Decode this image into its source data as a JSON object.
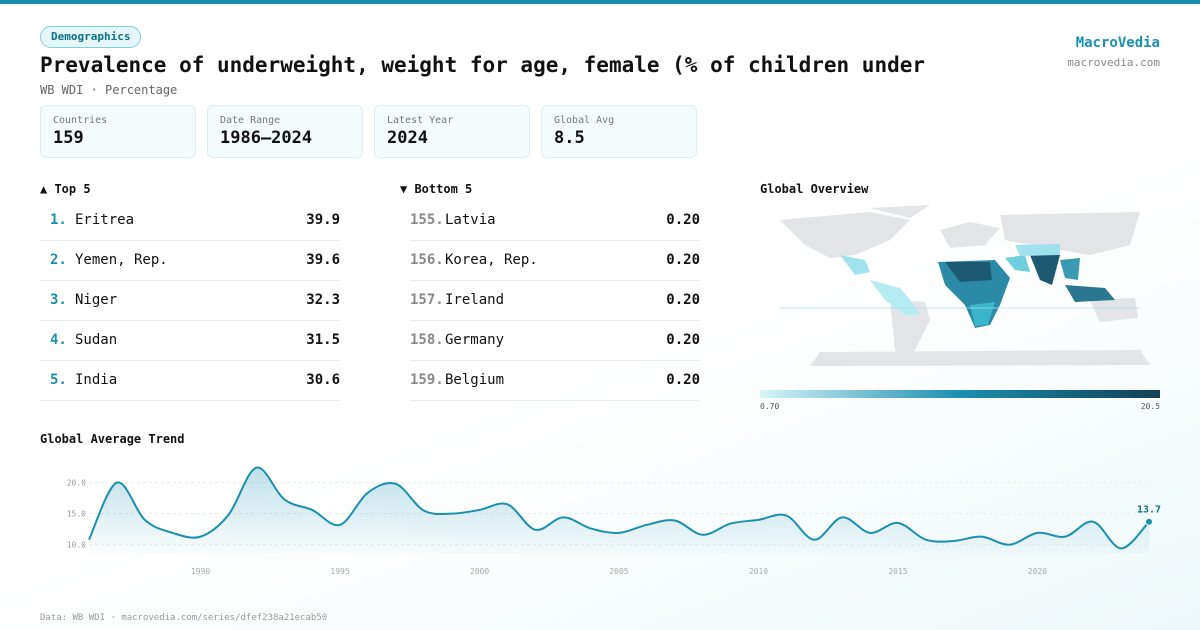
{
  "header": {
    "badge": "Demographics",
    "title": "Prevalence of underweight, weight for age, female (% of children under",
    "subtitle": "WB WDI · Percentage",
    "brand": "MacroVedia",
    "site": "macrovedia.com"
  },
  "stats": [
    {
      "label": "Countries",
      "value": "159"
    },
    {
      "label": "Date Range",
      "value": "1986–2024"
    },
    {
      "label": "Latest Year",
      "value": "2024"
    },
    {
      "label": "Global Avg",
      "value": "8.5"
    }
  ],
  "top": {
    "title": "▲ Top 5",
    "rows": [
      {
        "rank": "1.",
        "name": "Eritrea",
        "value": "39.9"
      },
      {
        "rank": "2.",
        "name": "Yemen, Rep.",
        "value": "39.6"
      },
      {
        "rank": "3.",
        "name": "Niger",
        "value": "32.3"
      },
      {
        "rank": "4.",
        "name": "Sudan",
        "value": "31.5"
      },
      {
        "rank": "5.",
        "name": "India",
        "value": "30.6"
      }
    ]
  },
  "bottom": {
    "title": "▼ Bottom 5",
    "rows": [
      {
        "rank": "155.",
        "name": "Latvia",
        "value": "0.20"
      },
      {
        "rank": "156.",
        "name": "Korea, Rep.",
        "value": "0.20"
      },
      {
        "rank": "157.",
        "name": "Ireland",
        "value": "0.20"
      },
      {
        "rank": "158.",
        "name": "Germany",
        "value": "0.20"
      },
      {
        "rank": "159.",
        "name": "Belgium",
        "value": "0.20"
      }
    ]
  },
  "map": {
    "title": "Global Overview",
    "min_label": "0.70",
    "max_label": "20.5"
  },
  "chart_data": {
    "type": "line",
    "title": "Global Average Trend",
    "x": [
      1986,
      1987,
      1988,
      1989,
      1990,
      1991,
      1992,
      1993,
      1994,
      1995,
      1996,
      1997,
      1998,
      1999,
      2000,
      2001,
      2002,
      2003,
      2004,
      2005,
      2006,
      2007,
      2008,
      2009,
      2010,
      2011,
      2012,
      2013,
      2014,
      2015,
      2016,
      2017,
      2018,
      2019,
      2020,
      2021,
      2022,
      2023,
      2024
    ],
    "series": [
      {
        "color": "#1a8fb0",
        "values": [
          10.8,
          20.0,
          14.0,
          11.9,
          11.3,
          14.8,
          22.4,
          17.3,
          15.6,
          13.2,
          18.4,
          19.8,
          15.5,
          15.0,
          15.6,
          16.5,
          12.4,
          14.4,
          12.6,
          11.9,
          13.2,
          13.9,
          11.6,
          13.4,
          14.0,
          14.7,
          10.8,
          14.4,
          11.9,
          13.5,
          10.8,
          10.6,
          11.3,
          10.0,
          11.9,
          11.3,
          13.7,
          9.4,
          13.7
        ]
      }
    ],
    "xlim": [
      1986,
      2024
    ],
    "ylim": [
      8.5,
      23
    ],
    "xticks": [
      1990,
      1995,
      2000,
      2005,
      2010,
      2015,
      2020
    ],
    "yticks": [
      {
        "value": 10,
        "label": "10.0"
      },
      {
        "value": 15,
        "label": "15.0"
      },
      {
        "value": 20,
        "label": "20.0"
      }
    ],
    "grid": true
  },
  "footer": "Data: WB WDI · macrovedia.com/series/dfef238a21ecab50"
}
